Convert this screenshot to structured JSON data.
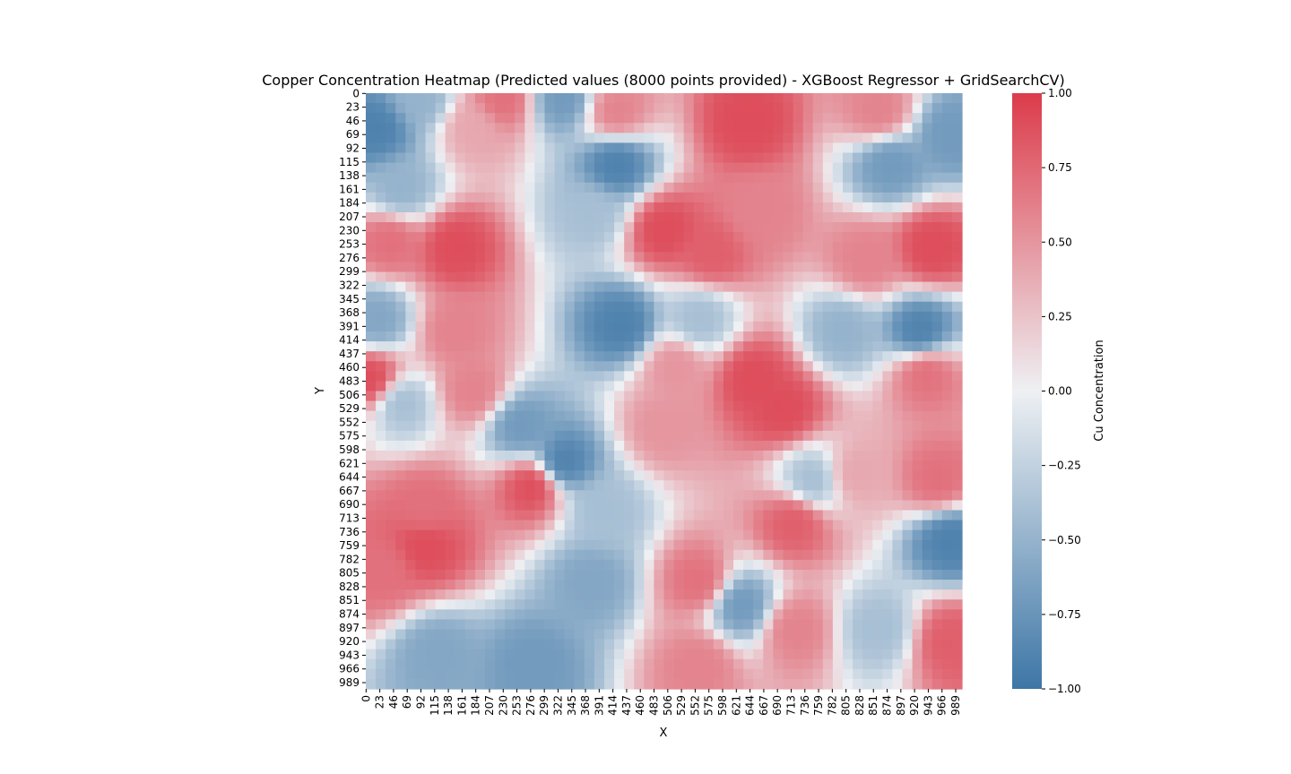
{
  "chart_data": {
    "type": "heatmap",
    "title": "Copper Concentration Heatmap (Predicted values (8000 points provided) - XGBoost Regressor + GridSearchCV)",
    "xlabel": "X",
    "ylabel": "Y",
    "grid_size": 1000,
    "x_tick_labels": [
      "0",
      "23",
      "46",
      "69",
      "92",
      "115",
      "138",
      "161",
      "184",
      "207",
      "230",
      "253",
      "276",
      "299",
      "322",
      "345",
      "368",
      "391",
      "414",
      "437",
      "460",
      "483",
      "506",
      "529",
      "552",
      "575",
      "598",
      "621",
      "644",
      "667",
      "690",
      "713",
      "736",
      "759",
      "782",
      "805",
      "828",
      "851",
      "874",
      "897",
      "920",
      "943",
      "966",
      "989"
    ],
    "y_tick_labels": [
      "0",
      "23",
      "46",
      "69",
      "92",
      "115",
      "138",
      "161",
      "184",
      "207",
      "230",
      "253",
      "276",
      "299",
      "322",
      "345",
      "368",
      "391",
      "414",
      "437",
      "460",
      "483",
      "506",
      "529",
      "552",
      "575",
      "598",
      "621",
      "644",
      "667",
      "690",
      "713",
      "736",
      "759",
      "782",
      "805",
      "828",
      "851",
      "874",
      "897",
      "920",
      "943",
      "966",
      "989"
    ],
    "colorbar": {
      "label": "Cu Concentration",
      "vmin": -1.0,
      "vmax": 1.0,
      "ticks": [
        1.0,
        0.75,
        0.5,
        0.25,
        0.0,
        -0.25,
        -0.5,
        -0.75,
        -1.0
      ],
      "tick_labels": [
        "1.00",
        "0.75",
        "0.50",
        "0.25",
        "0.00",
        "−0.25",
        "−0.50",
        "−0.75",
        "−1.00"
      ],
      "colors": {
        "low": "#3d76a6",
        "mid": "#eef0f3",
        "high": "#dc3b4a"
      }
    },
    "value_fields": [
      {
        "x": 20,
        "y": 60,
        "v": -0.9
      },
      {
        "x": 90,
        "y": 10,
        "v": -0.5
      },
      {
        "x": 40,
        "y": 250,
        "v": 0.7
      },
      {
        "x": 150,
        "y": 260,
        "v": 0.9
      },
      {
        "x": 230,
        "y": 10,
        "v": 0.7
      },
      {
        "x": 180,
        "y": 60,
        "v": 0.4
      },
      {
        "x": 330,
        "y": 10,
        "v": -0.7
      },
      {
        "x": 420,
        "y": 120,
        "v": -0.9
      },
      {
        "x": 420,
        "y": 30,
        "v": 0.6
      },
      {
        "x": 380,
        "y": 200,
        "v": -0.4
      },
      {
        "x": 500,
        "y": 230,
        "v": 0.9
      },
      {
        "x": 580,
        "y": 270,
        "v": 0.8
      },
      {
        "x": 640,
        "y": 50,
        "v": 0.9
      },
      {
        "x": 660,
        "y": 200,
        "v": 0.6
      },
      {
        "x": 860,
        "y": 30,
        "v": 0.6
      },
      {
        "x": 980,
        "y": 70,
        "v": -0.7
      },
      {
        "x": 880,
        "y": 120,
        "v": -0.7
      },
      {
        "x": 950,
        "y": 260,
        "v": 0.9
      },
      {
        "x": 840,
        "y": 280,
        "v": 0.6
      },
      {
        "x": 930,
        "y": 400,
        "v": -0.9
      },
      {
        "x": 940,
        "y": 470,
        "v": 0.7
      },
      {
        "x": 430,
        "y": 390,
        "v": -0.9
      },
      {
        "x": 20,
        "y": 380,
        "v": -0.6
      },
      {
        "x": 150,
        "y": 400,
        "v": 0.6
      },
      {
        "x": 10,
        "y": 480,
        "v": 0.9
      },
      {
        "x": 60,
        "y": 520,
        "v": -0.4
      },
      {
        "x": 260,
        "y": 560,
        "v": -0.7
      },
      {
        "x": 330,
        "y": 620,
        "v": -0.9
      },
      {
        "x": 280,
        "y": 660,
        "v": 0.9
      },
      {
        "x": 650,
        "y": 480,
        "v": 0.9
      },
      {
        "x": 700,
        "y": 530,
        "v": 0.9
      },
      {
        "x": 520,
        "y": 460,
        "v": 0.5
      },
      {
        "x": 500,
        "y": 560,
        "v": 0.5
      },
      {
        "x": 100,
        "y": 700,
        "v": 0.7
      },
      {
        "x": 100,
        "y": 760,
        "v": 0.9
      },
      {
        "x": 30,
        "y": 800,
        "v": 0.7
      },
      {
        "x": 980,
        "y": 750,
        "v": -0.9
      },
      {
        "x": 960,
        "y": 650,
        "v": 0.7
      },
      {
        "x": 720,
        "y": 720,
        "v": 0.8
      },
      {
        "x": 560,
        "y": 820,
        "v": 0.7
      },
      {
        "x": 380,
        "y": 820,
        "v": -0.6
      },
      {
        "x": 630,
        "y": 860,
        "v": -0.7
      },
      {
        "x": 750,
        "y": 650,
        "v": -0.4
      },
      {
        "x": 980,
        "y": 920,
        "v": 0.8
      },
      {
        "x": 860,
        "y": 900,
        "v": -0.4
      },
      {
        "x": 120,
        "y": 940,
        "v": -0.6
      },
      {
        "x": 280,
        "y": 960,
        "v": -0.7
      },
      {
        "x": 560,
        "y": 960,
        "v": 0.6
      },
      {
        "x": 720,
        "y": 900,
        "v": 0.6
      },
      {
        "x": 60,
        "y": 160,
        "v": -0.5
      },
      {
        "x": 820,
        "y": 640,
        "v": 0.4
      },
      {
        "x": 180,
        "y": 500,
        "v": 0.6
      },
      {
        "x": 800,
        "y": 400,
        "v": -0.5
      },
      {
        "x": 400,
        "y": 700,
        "v": -0.4
      },
      {
        "x": 560,
        "y": 380,
        "v": -0.4
      }
    ]
  }
}
